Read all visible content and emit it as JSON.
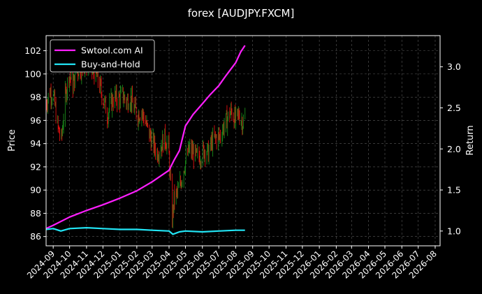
{
  "chart_data": {
    "type": "line",
    "title": "forex [AUDJPY.FXCM]",
    "ylabel_left": "Price",
    "ylabel_right": "Return",
    "grid": true,
    "legend_position": "top-left",
    "x_ticks": [
      "2024-09",
      "2024-10",
      "2024-11",
      "2024-12",
      "2025-01",
      "2025-02",
      "2025-03",
      "2025-04",
      "2025-05",
      "2025-06",
      "2025-07",
      "2025-08",
      "2025-09",
      "2025-10",
      "2025-11",
      "2025-12",
      "2026-01",
      "2026-02",
      "2026-03",
      "2026-04",
      "2026-05",
      "2026-06",
      "2026-07",
      "2026-08"
    ],
    "y_left_ticks": [
      86,
      88,
      90,
      92,
      94,
      96,
      98,
      100,
      102
    ],
    "y_left_range": [
      85.2,
      103.3
    ],
    "y_right_ticks": [
      1.0,
      1.5,
      2.0,
      2.5,
      3.0
    ],
    "y_right_range": [
      0.82,
      3.38
    ],
    "x_range": [
      "2024-08-19",
      "2026-08-10"
    ],
    "price_path": [
      [
        "2024-08-19",
        97.5
      ],
      [
        "2024-08-26",
        98.5
      ],
      [
        "2024-09-02",
        98.0
      ],
      [
        "2024-09-09",
        95.5
      ],
      [
        "2024-09-16",
        94.3
      ],
      [
        "2024-09-23",
        98.0
      ],
      [
        "2024-09-30",
        100.0
      ],
      [
        "2024-10-07",
        99.0
      ],
      [
        "2024-10-14",
        100.3
      ],
      [
        "2024-10-21",
        100.5
      ],
      [
        "2024-10-28",
        100.8
      ],
      [
        "2024-11-04",
        101.0
      ],
      [
        "2024-11-11",
        100.3
      ],
      [
        "2024-11-18",
        100.0
      ],
      [
        "2024-11-25",
        99.0
      ],
      [
        "2024-12-02",
        97.8
      ],
      [
        "2024-12-09",
        96.5
      ],
      [
        "2024-12-16",
        97.5
      ],
      [
        "2024-12-23",
        98.0
      ],
      [
        "2024-12-30",
        97.8
      ],
      [
        "2025-01-06",
        98.2
      ],
      [
        "2025-01-13",
        97.6
      ],
      [
        "2025-01-20",
        98.0
      ],
      [
        "2025-01-27",
        97.0
      ],
      [
        "2025-02-03",
        96.5
      ],
      [
        "2025-02-10",
        96.8
      ],
      [
        "2025-02-17",
        95.8
      ],
      [
        "2025-02-24",
        94.8
      ],
      [
        "2025-03-03",
        94.0
      ],
      [
        "2025-03-10",
        93.2
      ],
      [
        "2025-03-17",
        93.8
      ],
      [
        "2025-03-24",
        94.5
      ],
      [
        "2025-03-31",
        93.8
      ],
      [
        "2025-04-07",
        87.5
      ],
      [
        "2025-04-10",
        89.2
      ],
      [
        "2025-04-17",
        89.8
      ],
      [
        "2025-04-24",
        91.0
      ],
      [
        "2025-05-01",
        92.5
      ],
      [
        "2025-05-08",
        93.5
      ],
      [
        "2025-05-15",
        93.2
      ],
      [
        "2025-05-22",
        92.8
      ],
      [
        "2025-05-29",
        93.0
      ],
      [
        "2025-06-05",
        93.5
      ],
      [
        "2025-06-12",
        93.2
      ],
      [
        "2025-06-19",
        94.2
      ],
      [
        "2025-06-26",
        94.5
      ],
      [
        "2025-07-03",
        94.6
      ],
      [
        "2025-07-10",
        95.5
      ],
      [
        "2025-07-17",
        96.2
      ],
      [
        "2025-07-24",
        96.8
      ],
      [
        "2025-07-31",
        96.0
      ],
      [
        "2025-08-07",
        96.5
      ],
      [
        "2025-08-14",
        95.8
      ],
      [
        "2025-08-18",
        96.2
      ]
    ],
    "series": [
      {
        "name": "Swtool.com AI",
        "color": "#ff1fff",
        "axis": "right",
        "points": [
          [
            "2024-08-19",
            1.03
          ],
          [
            "2024-09-01",
            1.07
          ],
          [
            "2024-10-01",
            1.17
          ],
          [
            "2024-11-01",
            1.25
          ],
          [
            "2024-12-01",
            1.32
          ],
          [
            "2025-01-01",
            1.4
          ],
          [
            "2025-02-01",
            1.49
          ],
          [
            "2025-03-01",
            1.6
          ],
          [
            "2025-04-01",
            1.74
          ],
          [
            "2025-04-10",
            1.86
          ],
          [
            "2025-04-20",
            1.98
          ],
          [
            "2025-05-01",
            2.28
          ],
          [
            "2025-05-15",
            2.42
          ],
          [
            "2025-06-01",
            2.55
          ],
          [
            "2025-06-15",
            2.66
          ],
          [
            "2025-07-01",
            2.77
          ],
          [
            "2025-07-15",
            2.9
          ],
          [
            "2025-08-01",
            3.05
          ],
          [
            "2025-08-10",
            3.18
          ],
          [
            "2025-08-18",
            3.26
          ]
        ]
      },
      {
        "name": "Buy-and-Hold",
        "color": "#22e5f5",
        "axis": "right",
        "points": [
          [
            "2024-08-19",
            1.02
          ],
          [
            "2024-09-01",
            1.03
          ],
          [
            "2024-09-15",
            1.0
          ],
          [
            "2024-10-01",
            1.03
          ],
          [
            "2024-11-01",
            1.04
          ],
          [
            "2024-12-01",
            1.03
          ],
          [
            "2025-01-01",
            1.02
          ],
          [
            "2025-02-01",
            1.02
          ],
          [
            "2025-03-01",
            1.01
          ],
          [
            "2025-04-01",
            1.0
          ],
          [
            "2025-04-08",
            0.96
          ],
          [
            "2025-04-20",
            0.99
          ],
          [
            "2025-05-01",
            1.0
          ],
          [
            "2025-06-01",
            0.99
          ],
          [
            "2025-07-01",
            1.0
          ],
          [
            "2025-08-01",
            1.01
          ],
          [
            "2025-08-18",
            1.01
          ]
        ]
      }
    ]
  }
}
